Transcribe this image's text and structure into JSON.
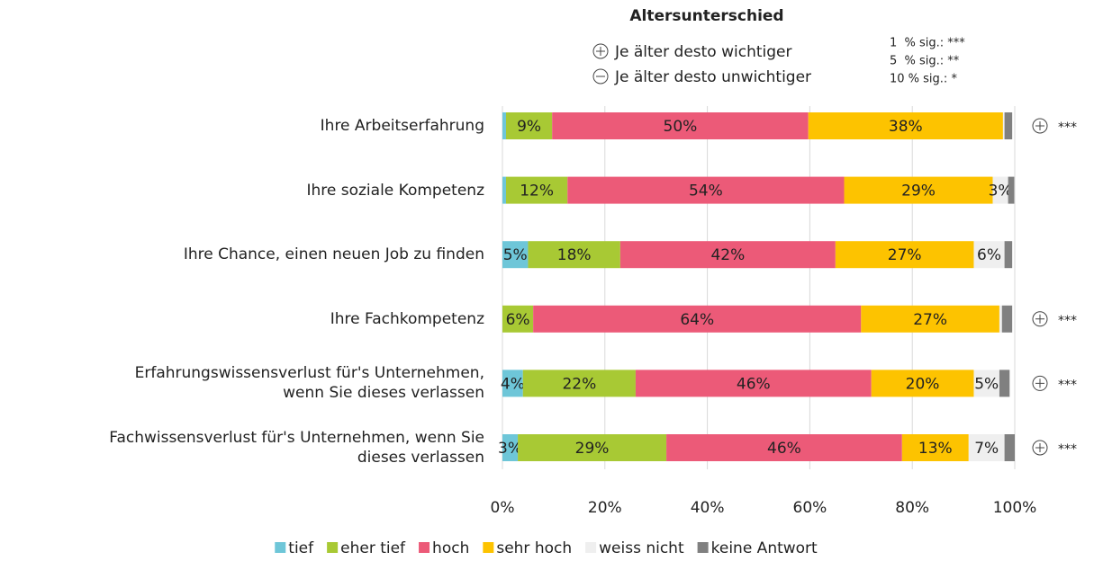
{
  "chart_data": {
    "type": "stacked_barh",
    "header": {
      "title": "Altersunterschied",
      "plus_text": "Je älter desto wichtiger",
      "minus_text": "Je älter desto unwichtiger",
      "significance": [
        "1  % sig.: ***",
        "5  % sig.: **",
        "10 % sig.: *"
      ]
    },
    "categories": [
      "Ihre Arbeitserfahrung",
      "Ihre soziale Kompetenz",
      "Ihre Chance, einen neuen Job zu finden",
      "Ihre Fachkompetenz",
      "Erfahrungswissensverlust für's Unternehmen,\nwenn Sie dieses verlassen",
      "Fachwissensverlust für's Unternehmen, wenn Sie\ndieses verlassen"
    ],
    "row_annotations": [
      "***",
      null,
      null,
      "***",
      "***",
      "***"
    ],
    "series": [
      {
        "name": "tief",
        "color": "#6ec6d8",
        "values": [
          0.7,
          0.7,
          5,
          0,
          4,
          3
        ],
        "value_labels": [
          null,
          null,
          "5%",
          null,
          "4%",
          "3%"
        ]
      },
      {
        "name": "eher tief",
        "color": "#a8c934",
        "values": [
          9,
          12,
          18,
          6,
          22,
          29
        ],
        "value_labels": [
          "9%",
          "12%",
          "18%",
          "6%",
          "22%",
          "29%"
        ]
      },
      {
        "name": "hoch",
        "color": "#ec5a78",
        "values": [
          50,
          54,
          42,
          64,
          46,
          46
        ],
        "value_labels": [
          "50%",
          "54%",
          "42%",
          "64%",
          "46%",
          "46%"
        ]
      },
      {
        "name": "sehr hoch",
        "color": "#fdc300",
        "values": [
          38,
          29,
          27,
          27,
          20,
          13
        ],
        "value_labels": [
          "38%",
          "29%",
          "27%",
          "27%",
          "20%",
          "13%"
        ]
      },
      {
        "name": "weiss nicht",
        "color": "#efefef",
        "values": [
          0.3,
          3,
          6,
          0.5,
          5,
          7
        ],
        "value_labels": [
          null,
          "3%",
          "6%",
          null,
          "5%",
          "7%"
        ]
      },
      {
        "name": "keine Antwort",
        "color": "#808080",
        "values": [
          1.5,
          1.2,
          1.5,
          2,
          2,
          2
        ],
        "value_labels": [
          null,
          null,
          null,
          null,
          null,
          null
        ]
      }
    ],
    "xlim": [
      0,
      100
    ],
    "xticks": [
      {
        "value": 0,
        "label": "0%"
      },
      {
        "value": 20,
        "label": "20%"
      },
      {
        "value": 40,
        "label": "40%"
      },
      {
        "value": 60,
        "label": "60%"
      },
      {
        "value": 80,
        "label": "80%"
      },
      {
        "value": 100,
        "label": "100%"
      }
    ],
    "grid": true
  }
}
